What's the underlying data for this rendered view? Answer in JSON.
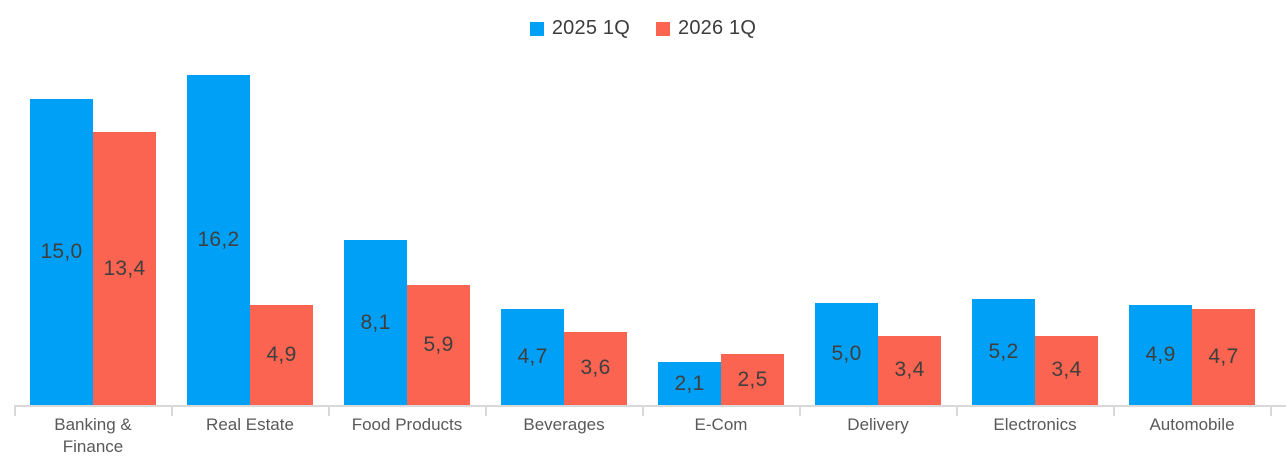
{
  "legend": {
    "items": [
      {
        "label": "2025 1Q",
        "color": "#00a0f6"
      },
      {
        "label": "2026 1Q",
        "color": "#fa6450"
      }
    ]
  },
  "chart_data": {
    "type": "bar",
    "title": "",
    "xlabel": "",
    "ylabel": "",
    "categories": [
      "Banking & Finance",
      "Real Estate",
      "Food Products",
      "Beverages",
      "E-Com",
      "Delivery",
      "Electronics",
      "Automobile"
    ],
    "series": [
      {
        "name": "2025 1Q",
        "color": "#00a0f6",
        "values": [
          15.0,
          16.2,
          8.1,
          4.7,
          2.1,
          5.0,
          5.2,
          4.9
        ],
        "value_labels": [
          "15,0",
          "16,2",
          "8,1",
          "4,7",
          "2,1",
          "5,0",
          "5,2",
          "4,9"
        ]
      },
      {
        "name": "2026 1Q",
        "color": "#fa6450",
        "values": [
          13.4,
          4.9,
          5.9,
          3.6,
          2.5,
          3.4,
          3.4,
          4.7
        ],
        "value_labels": [
          "13,4",
          "4,9",
          "5,9",
          "3,6",
          "2,5",
          "3,4",
          "3,4",
          "4,7"
        ]
      }
    ],
    "ylim": [
      0,
      16.2
    ],
    "grid": false,
    "y_axis_visible": false,
    "legend_position": "top-center",
    "value_labels_inside_bars": true,
    "decimal_separator": ",",
    "colors": {
      "axis": "#d9d9d9",
      "value_label": "#3f3f3f",
      "category_label": "#595959",
      "legend_text": "#3c3c3c",
      "background": "#ffffff"
    }
  }
}
